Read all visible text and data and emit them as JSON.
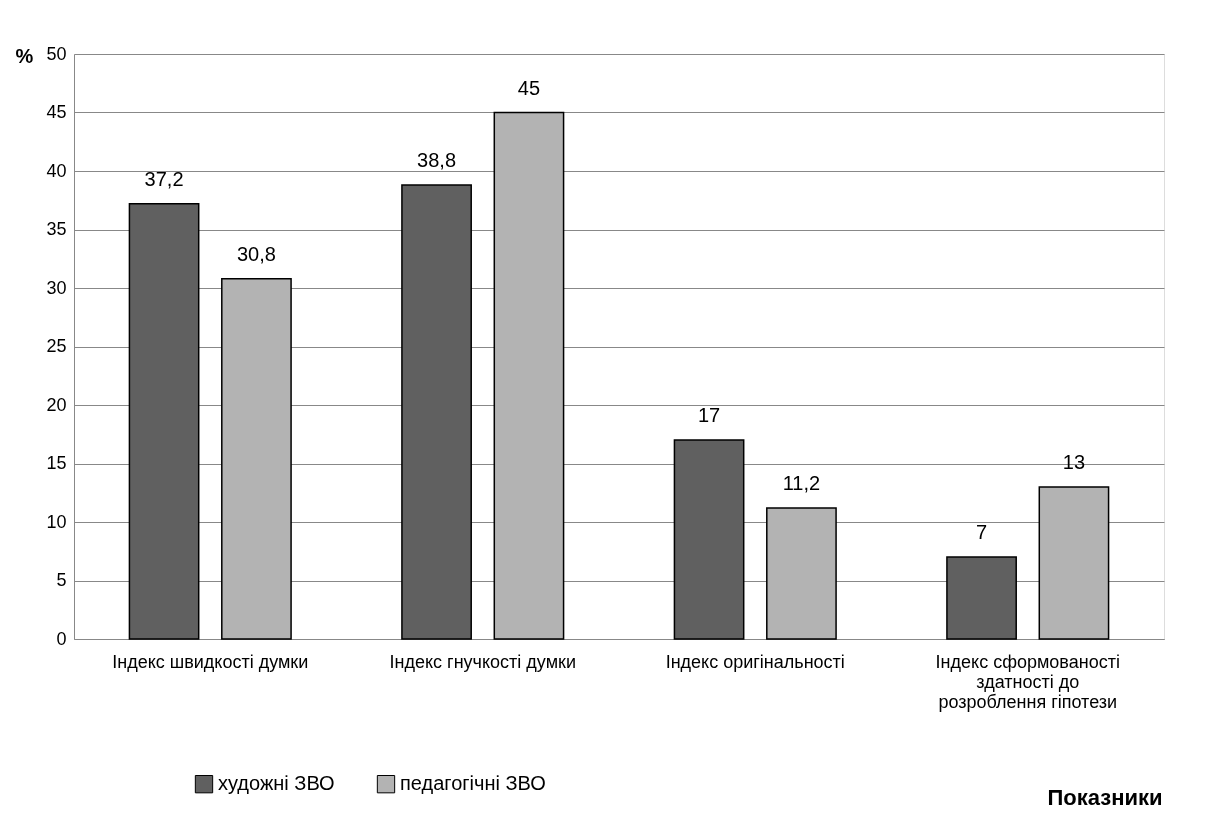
{
  "chart_data": {
    "type": "bar",
    "ylabel": "%",
    "xlabel": "Показники",
    "categories": [
      "Індекс швидкості думки",
      "Індекс гнучкості думки",
      "Індекс оригінальності",
      "Індекс сформованості здатності до розроблення гіпотези"
    ],
    "series": [
      {
        "name": "художні ЗВО",
        "color": "#606060",
        "values": [
          37.2,
          38.8,
          17,
          7
        ],
        "value_labels": [
          "37,2",
          "38,8",
          "17",
          "7"
        ]
      },
      {
        "name": "педагогічні ЗВО",
        "color": "#b3b3b3",
        "values": [
          30.8,
          45,
          11.2,
          13
        ],
        "value_labels": [
          "30,8",
          "45",
          "11,2",
          "13"
        ]
      }
    ],
    "ylim": [
      0,
      50
    ],
    "yticks": [
      0,
      5,
      10,
      15,
      20,
      25,
      30,
      35,
      40,
      45,
      50
    ],
    "grid": "y",
    "legend": "bottom"
  }
}
